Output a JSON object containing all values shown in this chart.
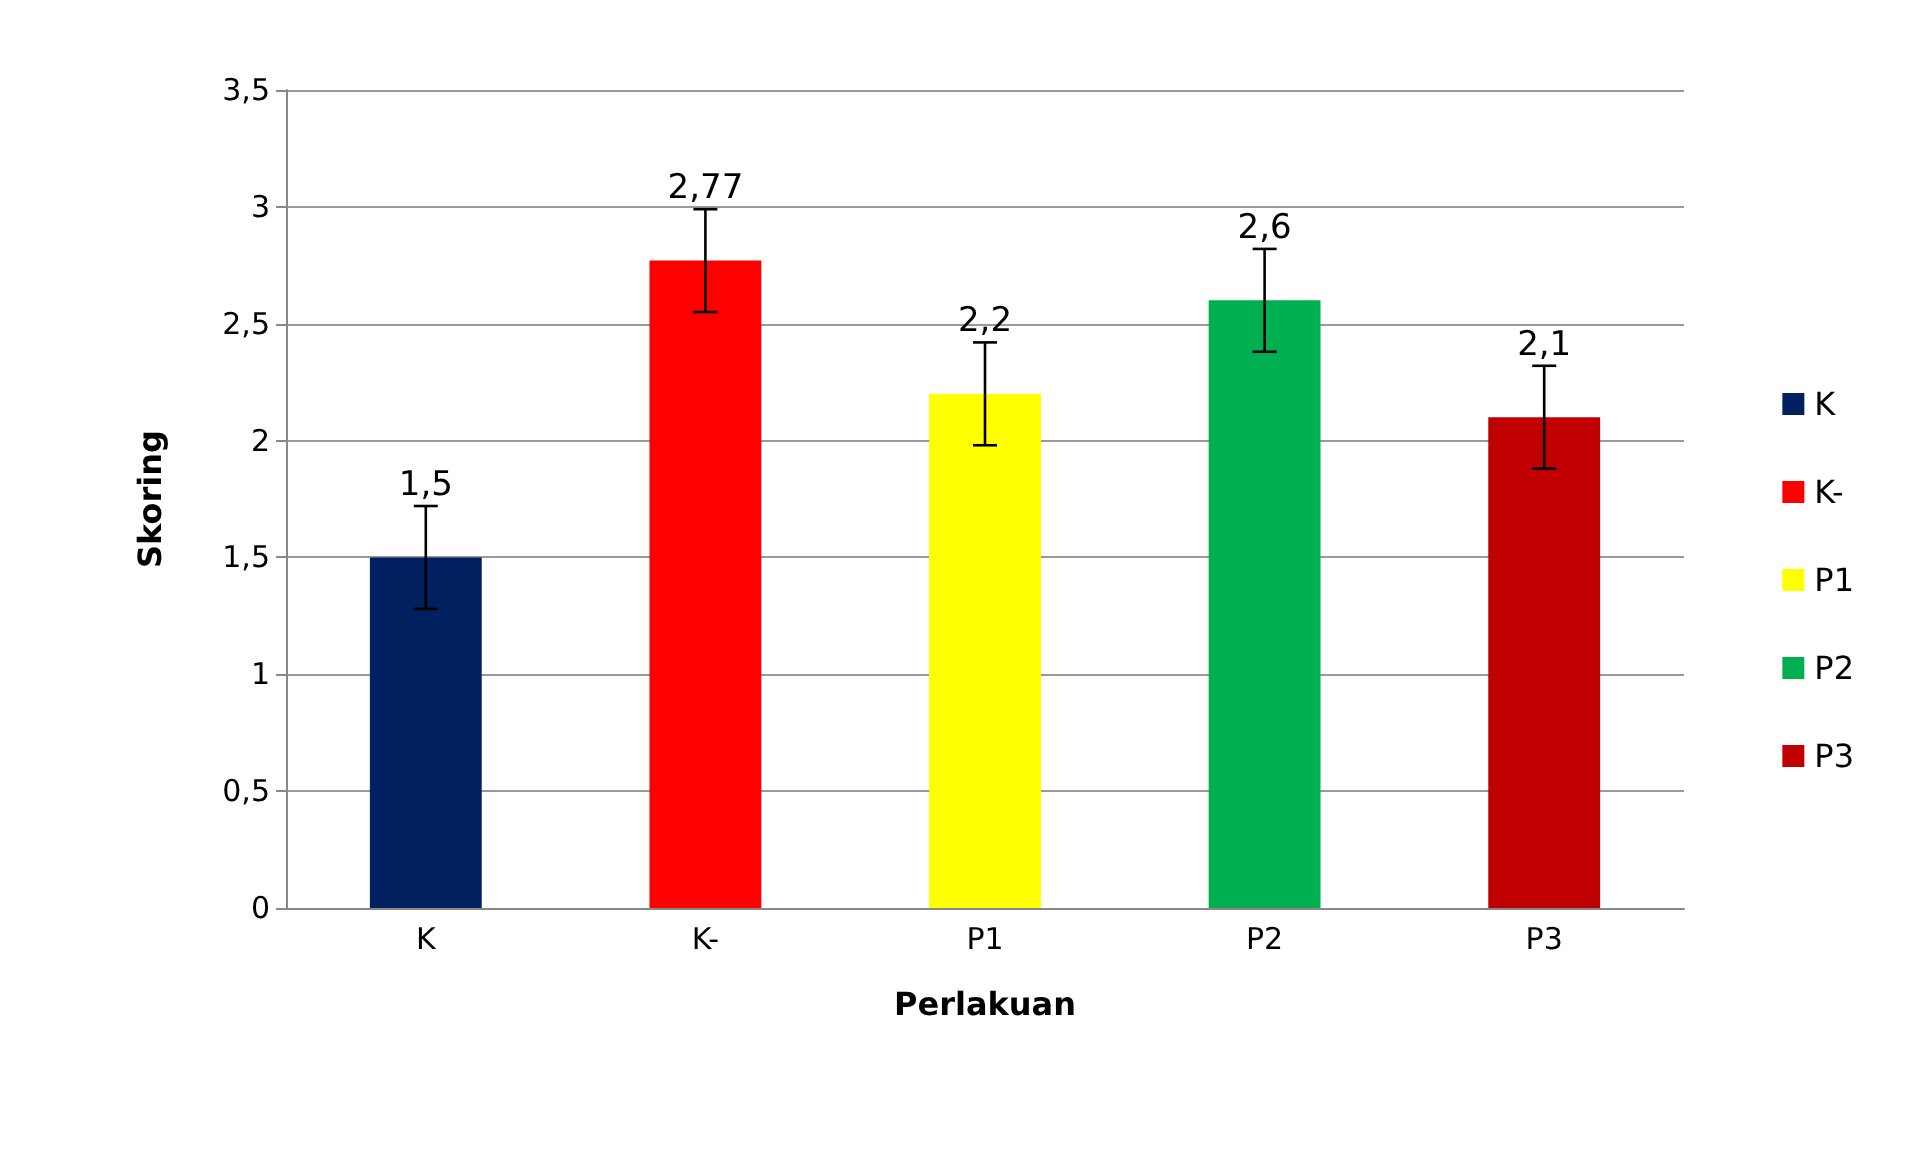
{
  "chart_data": {
    "type": "bar",
    "xlabel": "Perlakuan",
    "ylabel": "Skoring",
    "categories": [
      "K",
      "K-",
      "P1",
      "P2",
      "P3"
    ],
    "series": [
      {
        "name": "K",
        "color": "#002060",
        "values": [
          1.5,
          null,
          null,
          null,
          null
        ],
        "errors": [
          0.22,
          null,
          null,
          null,
          null
        ],
        "value_labels": [
          "1,5",
          null,
          null,
          null,
          null
        ]
      },
      {
        "name": "K-",
        "color": "#ff0000",
        "values": [
          null,
          2.77,
          null,
          null,
          null
        ],
        "errors": [
          null,
          0.22,
          null,
          null,
          null
        ],
        "value_labels": [
          null,
          "2,77",
          null,
          null,
          null
        ]
      },
      {
        "name": "P1",
        "color": "#ffff00",
        "values": [
          null,
          null,
          2.2,
          null,
          null
        ],
        "errors": [
          null,
          null,
          0.22,
          null,
          null
        ],
        "value_labels": [
          null,
          null,
          "2,2",
          null,
          null
        ]
      },
      {
        "name": "P2",
        "color": "#00b050",
        "values": [
          null,
          null,
          null,
          2.6,
          null
        ],
        "errors": [
          null,
          null,
          null,
          0.22,
          null
        ],
        "value_labels": [
          null,
          null,
          null,
          "2,6",
          null
        ]
      },
      {
        "name": "P3",
        "color": "#c00000",
        "values": [
          null,
          null,
          null,
          null,
          2.1
        ],
        "errors": [
          null,
          null,
          null,
          null,
          0.22
        ],
        "value_labels": [
          null,
          null,
          null,
          null,
          "2,1"
        ]
      }
    ],
    "ylim": [
      0,
      3.5
    ],
    "yticks": [
      0,
      {
        "value": 0.5,
        "label": "0,5"
      },
      1,
      {
        "value": 1.5,
        "label": "1,5"
      },
      2,
      {
        "value": 2.5,
        "label": "2,5"
      },
      3,
      {
        "value": 3.5,
        "label": "3,5"
      }
    ],
    "grid": "y",
    "legend": "right"
  }
}
